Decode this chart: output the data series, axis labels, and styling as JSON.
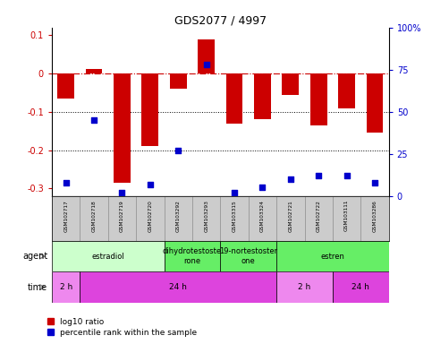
{
  "title": "GDS2077 / 4997",
  "samples": [
    "GSM102717",
    "GSM102718",
    "GSM102719",
    "GSM102720",
    "GSM103292",
    "GSM103293",
    "GSM103315",
    "GSM103324",
    "GSM102721",
    "GSM102722",
    "GSM103111",
    "GSM103286"
  ],
  "log10_ratio": [
    -0.065,
    0.012,
    -0.285,
    -0.19,
    -0.04,
    0.09,
    -0.13,
    -0.12,
    -0.055,
    -0.135,
    -0.09,
    -0.155
  ],
  "percentile_rank": [
    8,
    45,
    2,
    7,
    27,
    78,
    2,
    5,
    10,
    12,
    12,
    8
  ],
  "bar_color": "#cc0000",
  "dot_color": "#0000cc",
  "ylim_left": [
    -0.32,
    0.12
  ],
  "ylim_right": [
    0,
    100
  ],
  "yticks_left": [
    0.1,
    0.0,
    -0.1,
    -0.2,
    -0.3
  ],
  "yticks_right": [
    100,
    75,
    50,
    25,
    0
  ],
  "agent_groups": [
    {
      "label": "estradiol",
      "start": 0,
      "end": 4,
      "color": "#ccffcc"
    },
    {
      "label": "dihydrotestoste\nrone",
      "start": 4,
      "end": 6,
      "color": "#66ee66"
    },
    {
      "label": "19-nortestoster\none",
      "start": 6,
      "end": 8,
      "color": "#66ee66"
    },
    {
      "label": "estren",
      "start": 8,
      "end": 12,
      "color": "#66ee66"
    }
  ],
  "time_groups": [
    {
      "label": "2 h",
      "start": 0,
      "end": 1,
      "color": "#ee88ee"
    },
    {
      "label": "24 h",
      "start": 1,
      "end": 8,
      "color": "#dd44dd"
    },
    {
      "label": "2 h",
      "start": 8,
      "end": 10,
      "color": "#ee88ee"
    },
    {
      "label": "24 h",
      "start": 10,
      "end": 12,
      "color": "#dd44dd"
    }
  ],
  "legend_red_label": "log10 ratio",
  "legend_blue_label": "percentile rank within the sample",
  "background_color": "#ffffff",
  "hline_color": "#cc0000",
  "bar_width": 0.6,
  "sample_box_color": "#cccccc",
  "sample_box_edge": "#888888"
}
